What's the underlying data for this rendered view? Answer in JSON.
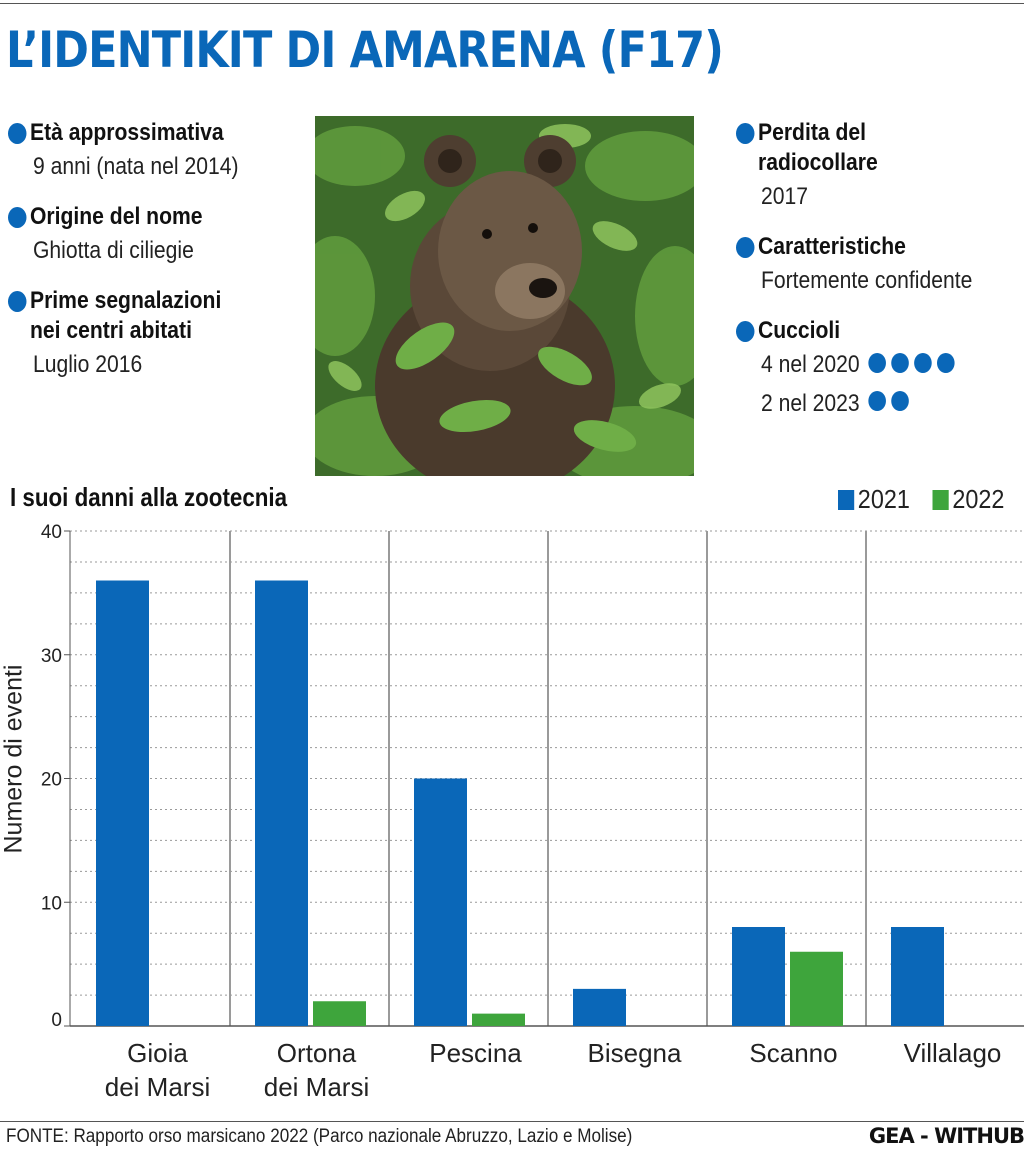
{
  "title": "L’IDENTIKIT DI AMARENA (F17)",
  "facts_left": [
    {
      "label": "Età approssimativa",
      "value": "9 anni (nata nel 2014)"
    },
    {
      "label": "Origine del nome",
      "value": "Ghiotta di ciliegie"
    },
    {
      "label": "Prime segnalazioni\nnei centri abitati",
      "value": "Luglio 2016"
    }
  ],
  "facts_right": [
    {
      "label": "Perdita del radiocollare",
      "value": "2017"
    },
    {
      "label": "Caratteristiche",
      "value": "Fortemente confidente"
    },
    {
      "label": "Cuccioli",
      "values": [
        {
          "text": "4 nel 2020",
          "count": 4
        },
        {
          "text": "2 nel 2023",
          "count": 2
        }
      ]
    }
  ],
  "photo": {
    "subject": "brown bear among green leaves"
  },
  "chart_data": {
    "type": "bar",
    "title": "I suoi danni alla zootecnia",
    "ylabel": "Numero di eventi",
    "xlabel": "",
    "ylim": [
      0,
      40
    ],
    "yticks": [
      0,
      10,
      20,
      30,
      40
    ],
    "grid": true,
    "legend_position": "top-right",
    "categories": [
      "Gioia\ndei Marsi",
      "Ortona\ndei Marsi",
      "Pescina",
      "Bisegna",
      "Scanno",
      "Villalago"
    ],
    "series": [
      {
        "name": "2021",
        "color": "#0a67b8",
        "values": [
          36,
          36,
          20,
          3,
          8,
          8
        ]
      },
      {
        "name": "2022",
        "color": "#3ea53c",
        "values": [
          0,
          2,
          1,
          0,
          6,
          0
        ]
      }
    ]
  },
  "source": "FONTE: Rapporto orso marsicano 2022 (Parco nazionale Abruzzo, Lazio e Molise)",
  "brand": "GEA - WITHUB"
}
